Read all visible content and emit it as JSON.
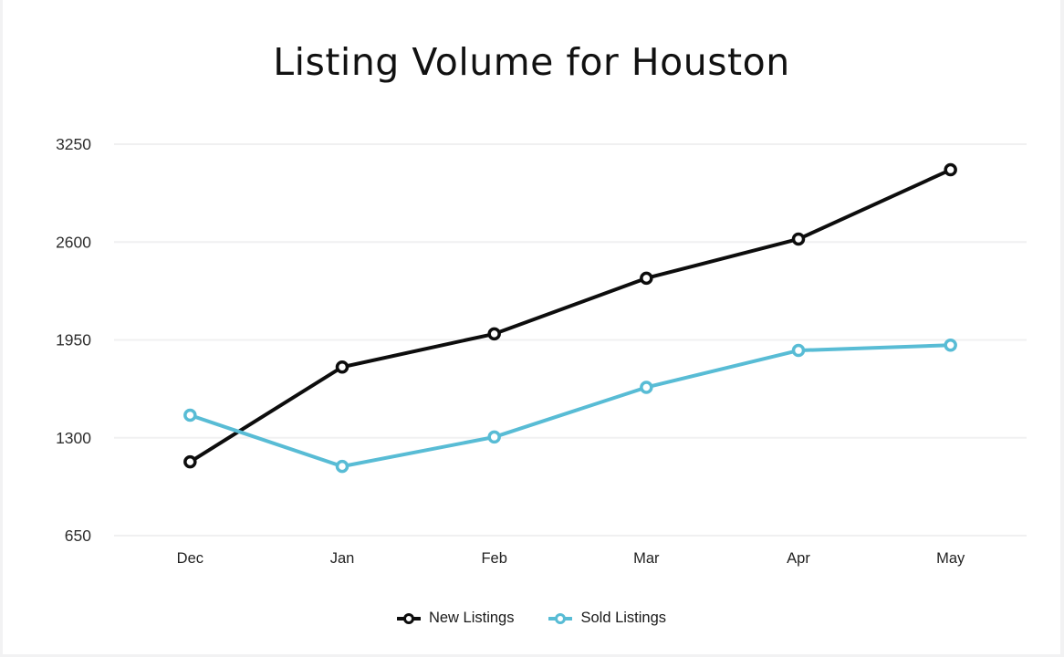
{
  "page": {
    "title": "Listing Volume for Houston"
  },
  "chart_data": {
    "type": "line",
    "title": "Listing Volume for Houston",
    "categories": [
      "Dec",
      "Jan",
      "Feb",
      "Mar",
      "Apr",
      "May"
    ],
    "series": [
      {
        "name": "New Listings",
        "color": "#0d0d0d",
        "values": [
          1140,
          1770,
          1990,
          2360,
          2620,
          3080
        ]
      },
      {
        "name": "Sold Listings",
        "color": "#58bcd5",
        "values": [
          1450,
          1110,
          1305,
          1635,
          1880,
          1915
        ]
      }
    ],
    "yticks": [
      650,
      1300,
      1950,
      2600,
      3250
    ],
    "ylim": [
      650,
      3250
    ],
    "xlabel": "",
    "ylabel": "",
    "grid": true,
    "legend_position": "bottom",
    "marker": "hollow-circle"
  },
  "style": {
    "grid_color": "#f0f0f1",
    "tick_label_color": "#2e2e2e",
    "x_label_color": "#222222",
    "background": "#ffffff"
  }
}
